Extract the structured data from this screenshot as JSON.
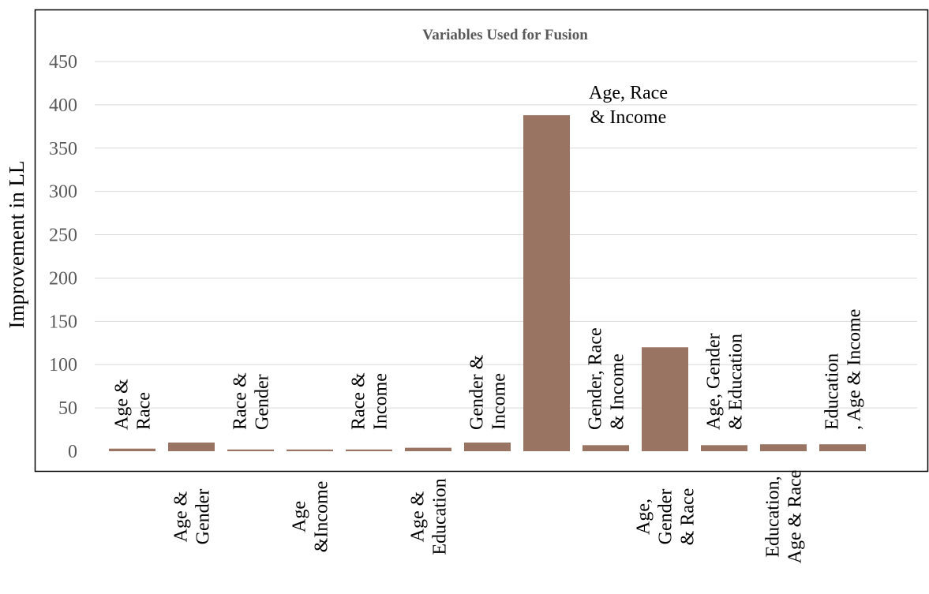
{
  "chart_data": {
    "type": "bar",
    "title": "Variables Used for Fusion",
    "xlabel": "",
    "ylabel": "Improvement in LL",
    "ylim": [
      0,
      450
    ],
    "yticks": [
      0,
      50,
      100,
      150,
      200,
      250,
      300,
      350,
      400,
      450
    ],
    "grid": true,
    "bar_color": "#9a7462",
    "categories": [
      [
        "Age &",
        "Race"
      ],
      [
        "Age &",
        "Gender"
      ],
      [
        "Race &",
        "Gender"
      ],
      [
        "Age",
        "&Income"
      ],
      [
        "Race &",
        "Income"
      ],
      [
        "Age &",
        "Education"
      ],
      [
        "Gender &",
        "Income"
      ],
      [
        "Age, Race",
        "& Income"
      ],
      [
        "Gender, Race",
        "& Income"
      ],
      [
        "Age,",
        "Gender",
        "& Race"
      ],
      [
        "Age, Gender",
        "& Education"
      ],
      [
        "Education,",
        "Age & Race"
      ],
      [
        "Education",
        ", Age & Income"
      ]
    ],
    "values": [
      3,
      10,
      2,
      2,
      2,
      4,
      10,
      388,
      7,
      120,
      7,
      8,
      8
    ]
  }
}
